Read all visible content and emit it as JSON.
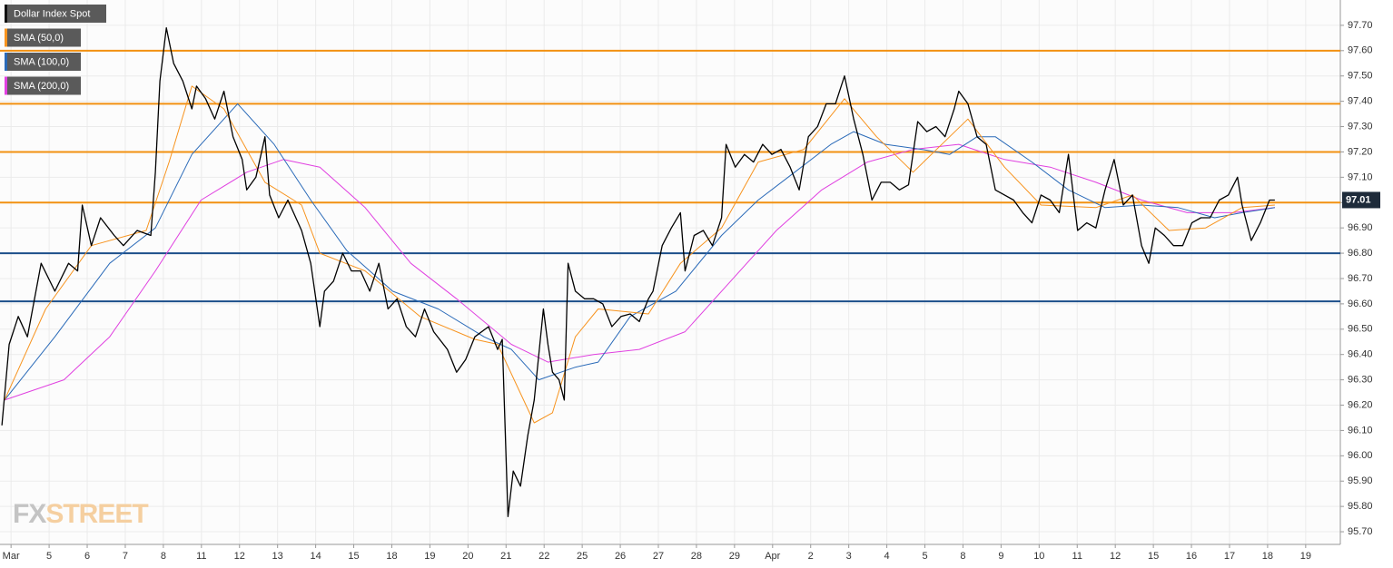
{
  "chart_data": {
    "type": "line",
    "xlim": [
      -0.29,
      34.91
    ],
    "ylim": [
      95.65,
      97.8
    ],
    "grid": true,
    "legend": "top-left",
    "xticks": [
      {
        "value": 0,
        "label": "Mar"
      },
      {
        "value": 1,
        "label": "5"
      },
      {
        "value": 2,
        "label": "6"
      },
      {
        "value": 3,
        "label": "7"
      },
      {
        "value": 4,
        "label": "8"
      },
      {
        "value": 5,
        "label": "11"
      },
      {
        "value": 6,
        "label": "12"
      },
      {
        "value": 7,
        "label": "13"
      },
      {
        "value": 8,
        "label": "14"
      },
      {
        "value": 9,
        "label": "15"
      },
      {
        "value": 10,
        "label": "18"
      },
      {
        "value": 11,
        "label": "19"
      },
      {
        "value": 12,
        "label": "20"
      },
      {
        "value": 13,
        "label": "21"
      },
      {
        "value": 14,
        "label": "22"
      },
      {
        "value": 15,
        "label": "25"
      },
      {
        "value": 16,
        "label": "26"
      },
      {
        "value": 17,
        "label": "27"
      },
      {
        "value": 18,
        "label": "28"
      },
      {
        "value": 19,
        "label": "29"
      },
      {
        "value": 20,
        "label": "Apr"
      },
      {
        "value": 21,
        "label": "2"
      },
      {
        "value": 22,
        "label": "3"
      },
      {
        "value": 23,
        "label": "4"
      },
      {
        "value": 24,
        "label": "5"
      },
      {
        "value": 25,
        "label": "8"
      },
      {
        "value": 26,
        "label": "9"
      },
      {
        "value": 27,
        "label": "10"
      },
      {
        "value": 28,
        "label": "11"
      },
      {
        "value": 29,
        "label": "12"
      },
      {
        "value": 30,
        "label": "15"
      },
      {
        "value": 31,
        "label": "16"
      },
      {
        "value": 32,
        "label": "17"
      },
      {
        "value": 33,
        "label": "18"
      },
      {
        "value": 34,
        "label": "19"
      }
    ],
    "yticks": [
      {
        "value": 95.7,
        "label": "95.70"
      },
      {
        "value": 95.8,
        "label": "95.80"
      },
      {
        "value": 95.9,
        "label": "95.90"
      },
      {
        "value": 96.0,
        "label": "96.00"
      },
      {
        "value": 96.1,
        "label": "96.10"
      },
      {
        "value": 96.2,
        "label": "96.20"
      },
      {
        "value": 96.3,
        "label": "96.30"
      },
      {
        "value": 96.4,
        "label": "96.40"
      },
      {
        "value": 96.5,
        "label": "96.50"
      },
      {
        "value": 96.6,
        "label": "96.60"
      },
      {
        "value": 96.7,
        "label": "96.70"
      },
      {
        "value": 96.8,
        "label": "96.80"
      },
      {
        "value": 96.9,
        "label": "96.90"
      },
      {
        "value": 97.0,
        "label": "97.00"
      },
      {
        "value": 97.1,
        "label": "97.10"
      },
      {
        "value": 97.2,
        "label": "97.20"
      },
      {
        "value": 97.3,
        "label": "97.30"
      },
      {
        "value": 97.4,
        "label": "97.40"
      },
      {
        "value": 97.5,
        "label": "97.50"
      },
      {
        "value": 97.6,
        "label": "97.60"
      },
      {
        "value": 97.7,
        "label": "97.70"
      }
    ],
    "hlines": [
      {
        "value": 97.6,
        "color": "#f29111"
      },
      {
        "value": 97.39,
        "color": "#f29111"
      },
      {
        "value": 97.2,
        "color": "#f29111"
      },
      {
        "value": 97.0,
        "color": "#f29111"
      },
      {
        "value": 96.8,
        "color": "#1c4f8a"
      },
      {
        "value": 96.61,
        "color": "#1c4f8a"
      }
    ],
    "last_price": 97.01,
    "watermark": [
      "FX",
      "STREET"
    ],
    "series": [
      {
        "name": "Dollar Index Spot",
        "color": "#000000",
        "x": [
          -0.24,
          -0.05,
          0.19,
          0.43,
          0.79,
          1.15,
          1.51,
          1.75,
          1.87,
          2.11,
          2.35,
          2.71,
          2.95,
          3.31,
          3.67,
          3.79,
          3.91,
          4.08,
          4.27,
          4.51,
          4.75,
          4.87,
          5.11,
          5.35,
          5.59,
          5.83,
          6.07,
          6.19,
          6.43,
          6.67,
          6.79,
          7.03,
          7.27,
          7.63,
          7.87,
          8.11,
          8.23,
          8.47,
          8.71,
          8.94,
          9.18,
          9.42,
          9.66,
          9.9,
          10.14,
          10.38,
          10.62,
          10.86,
          11.1,
          11.46,
          11.7,
          11.94,
          12.18,
          12.54,
          12.78,
          12.9,
          13.05,
          13.19,
          13.38,
          13.57,
          13.74,
          13.98,
          14.1,
          14.22,
          14.39,
          14.53,
          14.63,
          14.82,
          15.06,
          15.3,
          15.54,
          15.78,
          16.02,
          16.26,
          16.5,
          16.74,
          16.86,
          17.1,
          17.34,
          17.58,
          17.7,
          17.94,
          18.18,
          18.42,
          18.66,
          18.78,
          19.02,
          19.26,
          19.5,
          19.74,
          19.98,
          20.22,
          20.46,
          20.7,
          20.94,
          21.18,
          21.41,
          21.65,
          21.89,
          22.13,
          22.37,
          22.61,
          22.85,
          23.09,
          23.33,
          23.57,
          23.81,
          24.05,
          24.29,
          24.53,
          24.77,
          24.89,
          25.13,
          25.37,
          25.61,
          25.85,
          26.09,
          26.33,
          26.57,
          26.81,
          27.05,
          27.29,
          27.53,
          27.77,
          28.01,
          28.25,
          28.49,
          28.73,
          28.97,
          29.21,
          29.45,
          29.69,
          29.88,
          30.05,
          30.29,
          30.53,
          30.77,
          31.01,
          31.25,
          31.49,
          31.73,
          31.97,
          32.21,
          32.33,
          32.57,
          32.81,
          33.05,
          33.19
        ],
        "values": [
          96.12,
          96.44,
          96.55,
          96.47,
          96.76,
          96.65,
          96.76,
          96.73,
          96.99,
          96.83,
          96.94,
          96.87,
          96.83,
          96.89,
          96.87,
          97.12,
          97.48,
          97.69,
          97.55,
          97.48,
          97.37,
          97.46,
          97.41,
          97.33,
          97.44,
          97.26,
          97.17,
          97.05,
          97.1,
          97.26,
          97.03,
          96.94,
          97.01,
          96.89,
          96.76,
          96.51,
          96.65,
          96.69,
          96.8,
          96.73,
          96.73,
          96.65,
          96.76,
          96.58,
          96.62,
          96.51,
          96.47,
          96.58,
          96.49,
          96.42,
          96.33,
          96.38,
          96.47,
          96.51,
          96.42,
          96.46,
          95.76,
          95.94,
          95.88,
          96.08,
          96.22,
          96.58,
          96.44,
          96.33,
          96.3,
          96.22,
          96.76,
          96.65,
          96.62,
          96.62,
          96.6,
          96.51,
          96.55,
          96.56,
          96.53,
          96.62,
          96.65,
          96.83,
          96.9,
          96.96,
          96.73,
          96.87,
          96.89,
          96.83,
          96.94,
          97.23,
          97.14,
          97.19,
          97.16,
          97.23,
          97.19,
          97.21,
          97.14,
          97.05,
          97.26,
          97.3,
          97.39,
          97.39,
          97.5,
          97.33,
          97.19,
          97.01,
          97.08,
          97.08,
          97.05,
          97.07,
          97.32,
          97.28,
          97.3,
          97.26,
          97.37,
          97.44,
          97.39,
          97.26,
          97.23,
          97.05,
          97.03,
          97.01,
          96.96,
          96.92,
          97.03,
          97.01,
          96.96,
          97.19,
          96.89,
          96.92,
          96.9,
          97.05,
          97.17,
          96.99,
          97.03,
          96.83,
          96.76,
          96.9,
          96.87,
          96.83,
          96.83,
          96.92,
          96.94,
          96.94,
          97.01,
          97.03,
          97.1,
          96.99,
          96.85,
          96.92,
          97.01,
          97.01
        ]
      },
      {
        "name": "SMA (50,0)",
        "color": "#f7931e",
        "x": [
          -0.17,
          0.91,
          2.11,
          3.55,
          4.15,
          4.75,
          5.59,
          6.67,
          7.63,
          8.11,
          9.3,
          10.74,
          12.18,
          12.78,
          13.74,
          14.22,
          14.82,
          15.42,
          16.74,
          17.58,
          18.66,
          19.62,
          20.82,
          21.89,
          22.73,
          23.69,
          24.65,
          25.13,
          26.09,
          27.05,
          28.49,
          29.45,
          30.41,
          31.37,
          32.33,
          33.19
        ],
        "values": [
          96.22,
          96.58,
          96.83,
          96.89,
          97.16,
          97.46,
          97.37,
          97.08,
          96.99,
          96.8,
          96.73,
          96.55,
          96.46,
          96.44,
          96.13,
          96.17,
          96.47,
          96.58,
          96.56,
          96.76,
          96.9,
          97.16,
          97.21,
          97.41,
          97.26,
          97.12,
          97.26,
          97.33,
          97.14,
          96.99,
          96.98,
          97.03,
          96.89,
          96.9,
          96.98,
          96.99
        ]
      },
      {
        "name": "SMA (100,0)",
        "color": "#2a6ab8",
        "x": [
          -0.17,
          1.15,
          2.59,
          3.79,
          4.75,
          5.95,
          6.91,
          7.87,
          8.82,
          10.02,
          11.22,
          12.42,
          13.14,
          13.86,
          14.82,
          15.42,
          16.26,
          17.46,
          18.66,
          19.62,
          20.58,
          21.53,
          22.13,
          22.97,
          23.93,
          24.65,
          25.37,
          25.85,
          26.81,
          27.77,
          28.73,
          29.69,
          30.65,
          31.61,
          32.33,
          33.19
        ],
        "values": [
          96.22,
          96.47,
          96.76,
          96.9,
          97.19,
          97.39,
          97.23,
          97.01,
          96.81,
          96.65,
          96.58,
          96.47,
          96.42,
          96.3,
          96.35,
          96.37,
          96.55,
          96.65,
          96.87,
          97.01,
          97.12,
          97.23,
          97.28,
          97.23,
          97.21,
          97.19,
          97.26,
          97.26,
          97.16,
          97.05,
          96.98,
          96.99,
          96.98,
          96.94,
          96.96,
          96.98
        ]
      },
      {
        "name": "SMA (200,0)",
        "color": "#e040e0",
        "x": [
          -0.17,
          1.39,
          2.59,
          3.79,
          4.99,
          6.19,
          7.15,
          8.11,
          9.3,
          10.5,
          11.7,
          13.14,
          14.1,
          15.3,
          16.5,
          17.7,
          18.9,
          20.1,
          21.29,
          22.49,
          23.69,
          24.89,
          26.09,
          27.29,
          28.49,
          29.69,
          30.89,
          32.09,
          33.19
        ],
        "values": [
          96.22,
          96.3,
          96.47,
          96.73,
          97.01,
          97.12,
          97.17,
          97.14,
          96.98,
          96.76,
          96.62,
          96.44,
          96.37,
          96.4,
          96.42,
          96.49,
          96.69,
          96.89,
          97.05,
          97.16,
          97.21,
          97.23,
          97.17,
          97.14,
          97.08,
          97.01,
          96.96,
          96.96,
          96.98
        ]
      }
    ]
  }
}
